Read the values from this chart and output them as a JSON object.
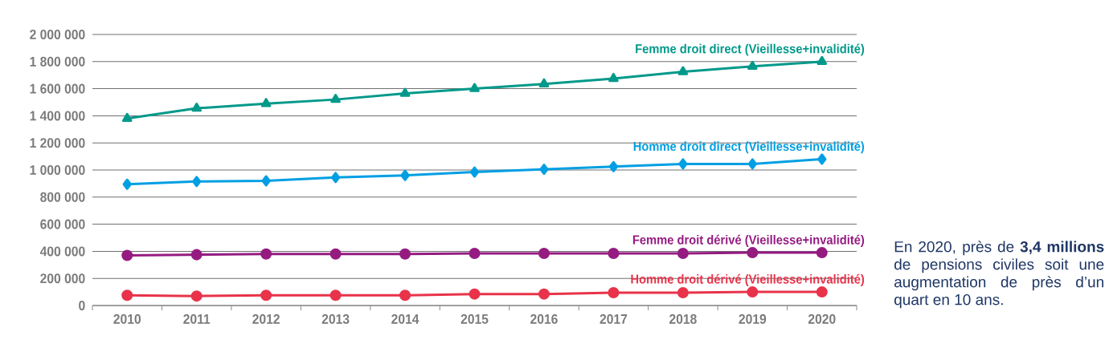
{
  "chart_data": {
    "type": "line",
    "categories": [
      "2010",
      "2011",
      "2012",
      "2013",
      "2014",
      "2015",
      "2016",
      "2017",
      "2018",
      "2019",
      "2020"
    ],
    "series": [
      {
        "name": "Femme droit direct (Vieillesse+invalidité)",
        "color": "#00998a",
        "marker": "triangle",
        "values": [
          1380000,
          1455000,
          1490000,
          1520000,
          1565000,
          1600000,
          1635000,
          1675000,
          1725000,
          1765000,
          1800000
        ]
      },
      {
        "name": "Homme droit direct (Vieillesse+invalidité)",
        "color": "#009fe3",
        "marker": "diamond",
        "values": [
          895000,
          915000,
          920000,
          945000,
          960000,
          985000,
          1005000,
          1025000,
          1045000,
          1045000,
          1080000
        ]
      },
      {
        "name": "Femme droit dérivé (Vieillesse+invalidité)",
        "color": "#951b81",
        "marker": "circle",
        "values": [
          370000,
          375000,
          380000,
          380000,
          380000,
          385000,
          385000,
          385000,
          385000,
          390000,
          390000
        ]
      },
      {
        "name": "Homme droit dérivé (Vieillesse+invalidité)",
        "color": "#e8334a",
        "marker": "circle",
        "values": [
          75000,
          70000,
          75000,
          75000,
          75000,
          85000,
          85000,
          95000,
          95000,
          100000,
          100000
        ]
      }
    ],
    "ylim": [
      0,
      2000000
    ],
    "yticks": [
      0,
      {
        "value": 200000,
        "label": "200 000"
      },
      {
        "value": 400000,
        "label": "400 000"
      },
      {
        "value": 600000,
        "label": "600 000"
      },
      {
        "value": 800000,
        "label": "800 000"
      },
      {
        "value": 1000000,
        "label": "1 000 000"
      },
      {
        "value": 1200000,
        "label": "1 200 000"
      },
      {
        "value": 1400000,
        "label": "1 400 000"
      },
      {
        "value": 1600000,
        "label": "1 600 000"
      },
      {
        "value": 1800000,
        "label": "1 800 000"
      },
      {
        "value": 2000000,
        "label": "2 000 000"
      }
    ],
    "grid": "y",
    "annotations": [
      "En 2020, près de **3,4 millions** de pensions civiles soit une augmentation de près d’un quart en 10 ans."
    ]
  }
}
